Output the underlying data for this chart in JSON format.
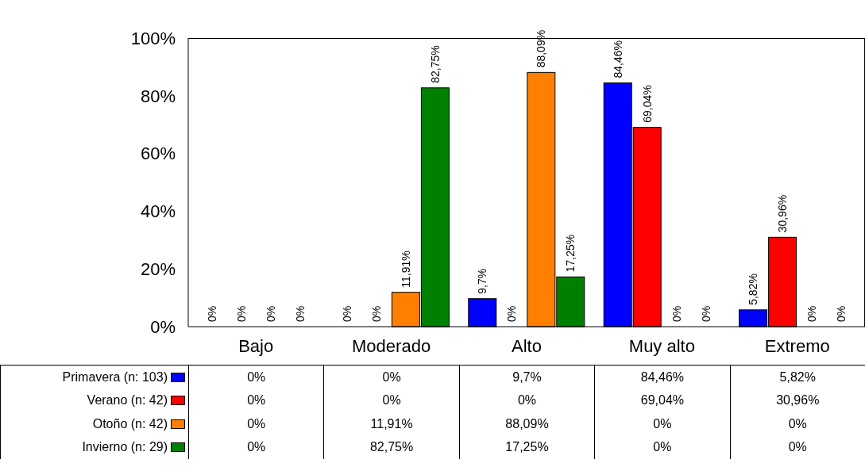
{
  "chart_data": {
    "type": "bar",
    "categories": [
      "Bajo",
      "Moderado",
      "Alto",
      "Muy alto",
      "Extremo"
    ],
    "series": [
      {
        "name": "Primavera (n: 103)",
        "color": "#0000ff",
        "values": [
          0,
          0,
          9.7,
          84.46,
          5.82
        ],
        "value_labels": [
          "0%",
          "0%",
          "9,7%",
          "84,46%",
          "5,82%"
        ]
      },
      {
        "name": "Verano (n: 42)",
        "color": "#ff0000",
        "values": [
          0,
          0,
          0,
          69.04,
          30.96
        ],
        "value_labels": [
          "0%",
          "0%",
          "0%",
          "69,04%",
          "30,96%"
        ]
      },
      {
        "name": "Otoño (n: 42)",
        "color": "#ff8000",
        "values": [
          0,
          11.91,
          88.09,
          0,
          0
        ],
        "value_labels": [
          "0%",
          "11,91%",
          "88,09%",
          "0%",
          "0%"
        ]
      },
      {
        "name": "Invierno (n: 29)",
        "color": "#008000",
        "values": [
          0,
          82.75,
          17.25,
          0,
          0
        ],
        "value_labels": [
          "0%",
          "82,75%",
          "17,25%",
          "0%",
          "0%"
        ]
      }
    ],
    "ylim": [
      0,
      100
    ],
    "yticks": [
      {
        "value": 0,
        "label": "0%"
      },
      {
        "value": 20,
        "label": "20%"
      },
      {
        "value": 40,
        "label": "40%"
      },
      {
        "value": 60,
        "label": "60%"
      },
      {
        "value": 80,
        "label": "80%"
      },
      {
        "value": 100,
        "label": "100%"
      }
    ],
    "grid": false,
    "legend": "bottom"
  }
}
